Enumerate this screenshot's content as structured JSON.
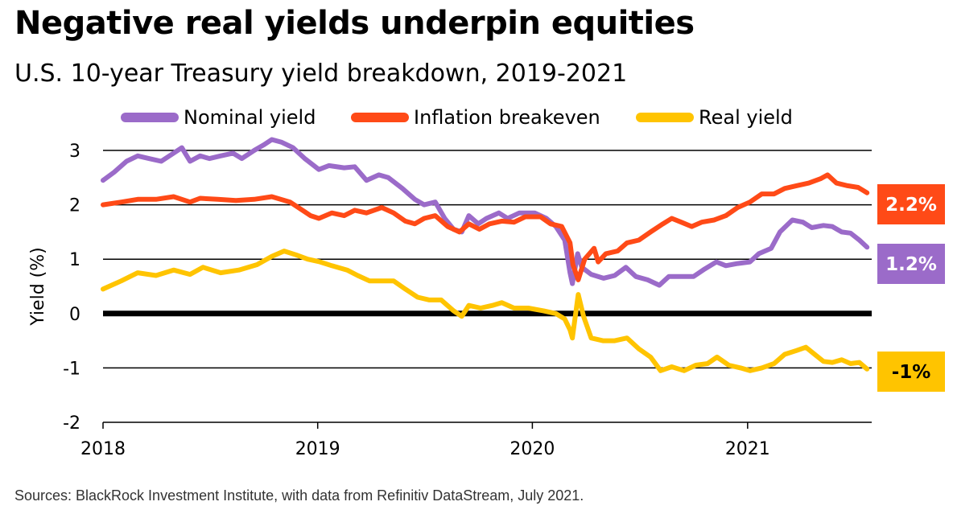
{
  "title": "Negative real yields underpin equities",
  "subtitle": "U.S. 10-year Treasury yield breakdown, 2019-2021",
  "source": "Sources: BlackRock Investment Institute, with data from Refinitiv DataStream, July 2021.",
  "chart_data": {
    "type": "line",
    "ylabel": "Yield (%)",
    "xlabel": "",
    "ylim": [
      -2,
      3
    ],
    "xlim": [
      "2018-01-01",
      "2021-07-31"
    ],
    "y_ticks": [
      3,
      2,
      1,
      0,
      -1,
      -2
    ],
    "x_ticks": [
      {
        "label": "2018",
        "date": "2018-01-01"
      },
      {
        "label": "2019",
        "date": "2019-01-01"
      },
      {
        "label": "2020",
        "date": "2020-01-01"
      },
      {
        "label": "2021",
        "date": "2021-01-01"
      }
    ],
    "grid": "horizontal",
    "legend_position": "top",
    "series": [
      {
        "name": "Nominal yield",
        "color": "#9b6bc9",
        "end_label": "1.2%",
        "points": [
          [
            "2018-01-01",
            2.45
          ],
          [
            "2018-01-20",
            2.6
          ],
          [
            "2018-02-10",
            2.8
          ],
          [
            "2018-03-01",
            2.9
          ],
          [
            "2018-03-20",
            2.85
          ],
          [
            "2018-04-10",
            2.8
          ],
          [
            "2018-05-01",
            2.95
          ],
          [
            "2018-05-15",
            3.05
          ],
          [
            "2018-05-29",
            2.8
          ],
          [
            "2018-06-15",
            2.9
          ],
          [
            "2018-07-01",
            2.85
          ],
          [
            "2018-07-20",
            2.9
          ],
          [
            "2018-08-10",
            2.95
          ],
          [
            "2018-08-25",
            2.85
          ],
          [
            "2018-09-15",
            3.0
          ],
          [
            "2018-10-01",
            3.1
          ],
          [
            "2018-10-15",
            3.2
          ],
          [
            "2018-11-01",
            3.15
          ],
          [
            "2018-11-20",
            3.05
          ],
          [
            "2018-12-10",
            2.85
          ],
          [
            "2019-01-03",
            2.65
          ],
          [
            "2019-01-20",
            2.72
          ],
          [
            "2019-02-15",
            2.68
          ],
          [
            "2019-03-05",
            2.7
          ],
          [
            "2019-03-25",
            2.45
          ],
          [
            "2019-04-15",
            2.55
          ],
          [
            "2019-05-01",
            2.5
          ],
          [
            "2019-05-25",
            2.3
          ],
          [
            "2019-06-15",
            2.1
          ],
          [
            "2019-07-01",
            2.0
          ],
          [
            "2019-07-20",
            2.05
          ],
          [
            "2019-08-05",
            1.75
          ],
          [
            "2019-08-20",
            1.55
          ],
          [
            "2019-09-03",
            1.5
          ],
          [
            "2019-09-15",
            1.8
          ],
          [
            "2019-10-01",
            1.65
          ],
          [
            "2019-10-15",
            1.75
          ],
          [
            "2019-11-05",
            1.85
          ],
          [
            "2019-11-20",
            1.75
          ],
          [
            "2019-12-10",
            1.85
          ],
          [
            "2020-01-05",
            1.85
          ],
          [
            "2020-01-25",
            1.75
          ],
          [
            "2020-02-10",
            1.6
          ],
          [
            "2020-02-25",
            1.35
          ],
          [
            "2020-03-05",
            0.75
          ],
          [
            "2020-03-09",
            0.55
          ],
          [
            "2020-03-18",
            1.1
          ],
          [
            "2020-03-25",
            0.85
          ],
          [
            "2020-04-10",
            0.72
          ],
          [
            "2020-05-01",
            0.65
          ],
          [
            "2020-05-20",
            0.7
          ],
          [
            "2020-06-08",
            0.85
          ],
          [
            "2020-06-25",
            0.68
          ],
          [
            "2020-07-15",
            0.62
          ],
          [
            "2020-08-04",
            0.52
          ],
          [
            "2020-08-20",
            0.68
          ],
          [
            "2020-09-10",
            0.68
          ],
          [
            "2020-10-01",
            0.68
          ],
          [
            "2020-10-20",
            0.82
          ],
          [
            "2020-11-09",
            0.95
          ],
          [
            "2020-11-25",
            0.88
          ],
          [
            "2020-12-15",
            0.92
          ],
          [
            "2021-01-05",
            0.95
          ],
          [
            "2021-01-20",
            1.1
          ],
          [
            "2021-02-10",
            1.2
          ],
          [
            "2021-02-25",
            1.5
          ],
          [
            "2021-03-18",
            1.72
          ],
          [
            "2021-04-05",
            1.68
          ],
          [
            "2021-04-20",
            1.58
          ],
          [
            "2021-05-10",
            1.62
          ],
          [
            "2021-05-25",
            1.6
          ],
          [
            "2021-06-10",
            1.5
          ],
          [
            "2021-06-25",
            1.48
          ],
          [
            "2021-07-10",
            1.35
          ],
          [
            "2021-07-23",
            1.22
          ]
        ]
      },
      {
        "name": "Inflation breakeven",
        "color": "#ff4a17",
        "end_label": "2.2%",
        "points": [
          [
            "2018-01-01",
            2.0
          ],
          [
            "2018-02-01",
            2.05
          ],
          [
            "2018-03-01",
            2.1
          ],
          [
            "2018-04-01",
            2.1
          ],
          [
            "2018-05-01",
            2.15
          ],
          [
            "2018-05-29",
            2.05
          ],
          [
            "2018-06-15",
            2.12
          ],
          [
            "2018-07-15",
            2.1
          ],
          [
            "2018-08-15",
            2.08
          ],
          [
            "2018-09-15",
            2.1
          ],
          [
            "2018-10-15",
            2.15
          ],
          [
            "2018-11-15",
            2.05
          ],
          [
            "2018-12-20",
            1.8
          ],
          [
            "2019-01-03",
            1.75
          ],
          [
            "2019-01-25",
            1.85
          ],
          [
            "2019-02-15",
            1.8
          ],
          [
            "2019-03-05",
            1.9
          ],
          [
            "2019-03-25",
            1.85
          ],
          [
            "2019-04-20",
            1.95
          ],
          [
            "2019-05-10",
            1.85
          ],
          [
            "2019-05-30",
            1.7
          ],
          [
            "2019-06-15",
            1.65
          ],
          [
            "2019-07-01",
            1.75
          ],
          [
            "2019-07-20",
            1.8
          ],
          [
            "2019-08-10",
            1.6
          ],
          [
            "2019-08-30",
            1.5
          ],
          [
            "2019-09-15",
            1.65
          ],
          [
            "2019-10-03",
            1.55
          ],
          [
            "2019-10-20",
            1.65
          ],
          [
            "2019-11-10",
            1.7
          ],
          [
            "2019-12-01",
            1.68
          ],
          [
            "2019-12-20",
            1.78
          ],
          [
            "2020-01-15",
            1.78
          ],
          [
            "2020-02-01",
            1.65
          ],
          [
            "2020-02-20",
            1.6
          ],
          [
            "2020-03-05",
            1.3
          ],
          [
            "2020-03-10",
            0.9
          ],
          [
            "2020-03-19",
            0.62
          ],
          [
            "2020-03-30",
            1.0
          ],
          [
            "2020-04-15",
            1.2
          ],
          [
            "2020-04-22",
            0.95
          ],
          [
            "2020-05-05",
            1.1
          ],
          [
            "2020-05-25",
            1.15
          ],
          [
            "2020-06-10",
            1.3
          ],
          [
            "2020-06-30",
            1.35
          ],
          [
            "2020-07-20",
            1.5
          ],
          [
            "2020-08-10",
            1.65
          ],
          [
            "2020-08-25",
            1.75
          ],
          [
            "2020-09-10",
            1.68
          ],
          [
            "2020-09-28",
            1.6
          ],
          [
            "2020-10-15",
            1.68
          ],
          [
            "2020-11-05",
            1.72
          ],
          [
            "2020-11-25",
            1.8
          ],
          [
            "2020-12-15",
            1.95
          ],
          [
            "2021-01-05",
            2.05
          ],
          [
            "2021-01-25",
            2.2
          ],
          [
            "2021-02-15",
            2.2
          ],
          [
            "2021-03-05",
            2.3
          ],
          [
            "2021-03-25",
            2.35
          ],
          [
            "2021-04-15",
            2.4
          ],
          [
            "2021-05-05",
            2.48
          ],
          [
            "2021-05-17",
            2.55
          ],
          [
            "2021-06-01",
            2.4
          ],
          [
            "2021-06-20",
            2.35
          ],
          [
            "2021-07-08",
            2.32
          ],
          [
            "2021-07-23",
            2.22
          ]
        ]
      },
      {
        "name": "Real yield",
        "color": "#ffc400",
        "end_label": "-1%",
        "points": [
          [
            "2018-01-01",
            0.45
          ],
          [
            "2018-02-01",
            0.6
          ],
          [
            "2018-03-01",
            0.75
          ],
          [
            "2018-04-01",
            0.7
          ],
          [
            "2018-05-01",
            0.8
          ],
          [
            "2018-05-29",
            0.72
          ],
          [
            "2018-06-20",
            0.85
          ],
          [
            "2018-07-20",
            0.75
          ],
          [
            "2018-08-20",
            0.8
          ],
          [
            "2018-09-20",
            0.9
          ],
          [
            "2018-10-15",
            1.05
          ],
          [
            "2018-11-05",
            1.15
          ],
          [
            "2018-11-25",
            1.08
          ],
          [
            "2018-12-15",
            1.0
          ],
          [
            "2019-01-05",
            0.95
          ],
          [
            "2019-01-25",
            0.88
          ],
          [
            "2019-02-20",
            0.8
          ],
          [
            "2019-03-10",
            0.7
          ],
          [
            "2019-03-30",
            0.6
          ],
          [
            "2019-04-20",
            0.6
          ],
          [
            "2019-05-10",
            0.6
          ],
          [
            "2019-05-30",
            0.45
          ],
          [
            "2019-06-20",
            0.3
          ],
          [
            "2019-07-10",
            0.25
          ],
          [
            "2019-07-30",
            0.25
          ],
          [
            "2019-08-20",
            0.05
          ],
          [
            "2019-09-03",
            -0.05
          ],
          [
            "2019-09-15",
            0.15
          ],
          [
            "2019-10-05",
            0.1
          ],
          [
            "2019-10-25",
            0.15
          ],
          [
            "2019-11-10",
            0.2
          ],
          [
            "2019-12-01",
            0.1
          ],
          [
            "2019-12-25",
            0.1
          ],
          [
            "2020-01-20",
            0.05
          ],
          [
            "2020-02-10",
            0.0
          ],
          [
            "2020-02-25",
            -0.1
          ],
          [
            "2020-03-05",
            -0.3
          ],
          [
            "2020-03-09",
            -0.45
          ],
          [
            "2020-03-19",
            0.35
          ],
          [
            "2020-03-28",
            -0.05
          ],
          [
            "2020-04-10",
            -0.45
          ],
          [
            "2020-04-30",
            -0.5
          ],
          [
            "2020-05-20",
            -0.5
          ],
          [
            "2020-06-10",
            -0.45
          ],
          [
            "2020-06-30",
            -0.65
          ],
          [
            "2020-07-20",
            -0.8
          ],
          [
            "2020-08-06",
            -1.05
          ],
          [
            "2020-08-25",
            -0.98
          ],
          [
            "2020-09-15",
            -1.05
          ],
          [
            "2020-10-05",
            -0.95
          ],
          [
            "2020-10-25",
            -0.92
          ],
          [
            "2020-11-10",
            -0.8
          ],
          [
            "2020-11-30",
            -0.95
          ],
          [
            "2020-12-20",
            -1.0
          ],
          [
            "2021-01-05",
            -1.05
          ],
          [
            "2021-01-25",
            -1.0
          ],
          [
            "2021-02-15",
            -0.92
          ],
          [
            "2021-03-05",
            -0.75
          ],
          [
            "2021-03-25",
            -0.68
          ],
          [
            "2021-04-10",
            -0.62
          ],
          [
            "2021-04-25",
            -0.75
          ],
          [
            "2021-05-10",
            -0.88
          ],
          [
            "2021-05-25",
            -0.9
          ],
          [
            "2021-06-10",
            -0.85
          ],
          [
            "2021-06-25",
            -0.92
          ],
          [
            "2021-07-10",
            -0.9
          ],
          [
            "2021-07-23",
            -1.02
          ]
        ]
      }
    ]
  }
}
